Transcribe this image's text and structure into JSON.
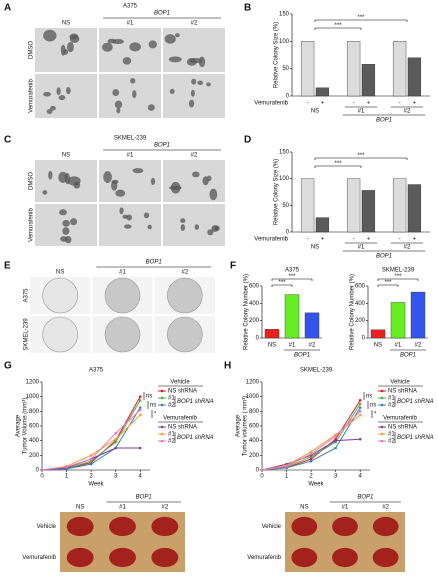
{
  "panel_letters": [
    "A",
    "B",
    "C",
    "D",
    "E",
    "F",
    "G",
    "H"
  ],
  "image_panels": [
    {
      "title": "A375",
      "bracket": "BOP1",
      "columns": [
        "NS",
        "#1",
        "#2"
      ],
      "rows": [
        "DMSO",
        "Vemurafenib"
      ]
    },
    {
      "title": "SKMEL-239",
      "bracket": "BOP1",
      "columns": [
        "NS",
        "#1",
        "#2"
      ],
      "rows": [
        "DMSO",
        "Vemurafenib"
      ]
    },
    {
      "bracket": "BOP1",
      "columns": [
        "NS",
        "#1",
        "#2"
      ],
      "rows": [
        "A375",
        "SKMEL-239"
      ]
    },
    {
      "bracket": "BOP1",
      "columns": [
        "NS",
        "#1",
        "#2"
      ],
      "rows": [
        "Vehicle",
        "Vemurafenib"
      ]
    },
    {
      "bracket": "BOP1",
      "columns": [
        "NS",
        "#1",
        "#2"
      ],
      "rows": [
        "Vehicle",
        "Vemurafenib"
      ]
    }
  ],
  "chart_data": [
    {
      "type": "grouped_bar",
      "ylabel": "Relative Colony Size (%)",
      "categories": [
        "NS",
        "#1",
        "#2"
      ],
      "group_label": "BOP1",
      "x_row_label": "Vemurafenib",
      "series": [
        {
          "name": "-",
          "color": "#dcdcdc",
          "values": [
            100,
            100,
            100
          ]
        },
        {
          "name": "+",
          "color": "#5a5a5a",
          "values": [
            15,
            58,
            70
          ]
        }
      ],
      "ylim": [
        0,
        150
      ],
      "yticks": [
        0,
        50,
        100,
        150
      ],
      "annotations": [
        "***",
        "***"
      ]
    },
    {
      "type": "grouped_bar",
      "ylabel": "Relative Colony Size (%)",
      "categories": [
        "NS",
        "#1",
        "#2"
      ],
      "group_label": "BOP1",
      "x_row_label": "Vemurafenib",
      "series": [
        {
          "name": "-",
          "color": "#dcdcdc",
          "values": [
            100,
            100,
            100
          ]
        },
        {
          "name": "+",
          "color": "#5a5a5a",
          "values": [
            27,
            78,
            89
          ]
        }
      ],
      "ylim": [
        0,
        150
      ],
      "yticks": [
        0,
        50,
        100,
        150
      ],
      "annotations": [
        "***",
        "***"
      ]
    },
    {
      "type": "bar",
      "title": "A375",
      "ylabel": "Relative Colony Number (%)",
      "xlabel": "BOP1",
      "categories": [
        "NS",
        "#1",
        "#2"
      ],
      "values": [
        100,
        500,
        290
      ],
      "colors": [
        "#e8221f",
        "#66ee22",
        "#3355ee"
      ],
      "ylim": [
        0,
        600
      ],
      "yticks": [
        0,
        200,
        400,
        600
      ],
      "annotations": [
        "***",
        "***"
      ]
    },
    {
      "type": "bar",
      "title": "SKMEL-239",
      "ylabel": "Relative Colony Number (%)",
      "xlabel": "BOP1",
      "categories": [
        "NS",
        "#1",
        "#2"
      ],
      "values": [
        95,
        410,
        530
      ],
      "colors": [
        "#e8221f",
        "#66ee22",
        "#3355ee"
      ],
      "ylim": [
        0,
        600
      ],
      "yticks": [
        0,
        200,
        400,
        600
      ],
      "annotations": [
        "***",
        "***"
      ]
    },
    {
      "type": "line",
      "title": "A375",
      "xlabel": "Week",
      "ylabel": [
        "Average",
        "Tumor Volume (mm³)"
      ],
      "x": [
        0,
        1,
        2,
        3,
        4
      ],
      "xlim": [
        0,
        4.4
      ],
      "xticks": [
        0,
        1,
        2,
        3,
        4
      ],
      "ylim": [
        0,
        1200
      ],
      "yticks": [
        0,
        200,
        400,
        600,
        800,
        1000,
        1200
      ],
      "legend_groups": [
        {
          "title": "Vehicle",
          "bracket": "BOP1 shRNA"
        },
        {
          "title": "Vemurafenib",
          "bracket": "BOP1 shRNA"
        }
      ],
      "series": [
        {
          "name": "NS shRNA",
          "color": "#e41a1c",
          "values": [
            0,
            20,
            100,
            400,
            1000
          ]
        },
        {
          "name": "#1",
          "color": "#4daf4a",
          "values": [
            0,
            20,
            120,
            380,
            950
          ]
        },
        {
          "name": "#2",
          "color": "#377eb8",
          "values": [
            0,
            15,
            80,
            300,
            850
          ]
        },
        {
          "name": "NS shRNA",
          "color": "#7b3f9e",
          "values": [
            0,
            30,
            150,
            300,
            300
          ]
        },
        {
          "name": "#1",
          "color": "#ff9933",
          "values": [
            0,
            50,
            200,
            420,
            750
          ]
        },
        {
          "name": "#2",
          "color": "#e377c2",
          "values": [
            0,
            40,
            150,
            500,
            820
          ]
        }
      ],
      "annotations": [
        "ns",
        "ns",
        "*"
      ]
    },
    {
      "type": "line",
      "title": "SKMEL-239",
      "xlabel": "Week",
      "ylabel": [
        "Average",
        "Tumor volumes ( mm³)"
      ],
      "x": [
        0,
        1,
        2,
        3,
        4
      ],
      "xlim": [
        0,
        4.4
      ],
      "xticks": [
        0,
        1,
        2,
        3,
        4
      ],
      "ylim": [
        0,
        1200
      ],
      "yticks": [
        0,
        200,
        400,
        600,
        800,
        1000,
        1200
      ],
      "legend_groups": [
        {
          "title": "Vehicle",
          "bracket": "BOP1 shRNA"
        },
        {
          "title": "Vemurafenib",
          "bracket": "BOP1 shRNA"
        }
      ],
      "series": [
        {
          "name": "NS shRNA",
          "color": "#e41a1c",
          "values": [
            0,
            30,
            150,
            420,
            950
          ]
        },
        {
          "name": "#1",
          "color": "#4daf4a",
          "values": [
            0,
            40,
            180,
            380,
            900
          ]
        },
        {
          "name": "#2",
          "color": "#377eb8",
          "values": [
            0,
            30,
            120,
            300,
            850
          ]
        },
        {
          "name": "NS shRNA",
          "color": "#7b3f9e",
          "values": [
            0,
            80,
            200,
            400,
            420
          ]
        },
        {
          "name": "#1",
          "color": "#ff9933",
          "values": [
            0,
            60,
            250,
            480,
            750
          ]
        },
        {
          "name": "#2",
          "color": "#e377c2",
          "values": [
            0,
            50,
            220,
            460,
            800
          ]
        }
      ],
      "annotations": [
        "ns",
        "ns",
        "*"
      ]
    }
  ]
}
